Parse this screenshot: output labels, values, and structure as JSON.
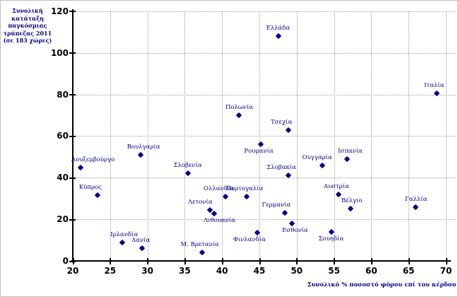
{
  "chart_data": {
    "type": "scatter",
    "title": "",
    "y_axis_label_lines": [
      "Συνολική",
      "κατάταξη",
      "παγκόσμιας",
      "τράπεζας 2011",
      "(σε 183 χώρες)"
    ],
    "x_axis_label": "Συνολικό % ποσοστό φόρου επί του κέρδου",
    "xlim": [
      20,
      70
    ],
    "ylim": [
      0,
      120
    ],
    "x_ticks": [
      20,
      25,
      30,
      35,
      40,
      45,
      50,
      55,
      60,
      65,
      70
    ],
    "y_ticks": [
      0,
      20,
      40,
      60,
      80,
      100,
      120
    ],
    "grid": "dotted",
    "legend": "none",
    "marker_color": "#00008B",
    "label_color": "#00008B",
    "grid_color": "#9a9a9a",
    "axis_color": "#000000",
    "points": [
      {
        "name": "Λουξεμβούργο",
        "x": 21.0,
        "y": 45,
        "label_side": "above",
        "dx": 18
      },
      {
        "name": "Κύπρος",
        "x": 23.3,
        "y": 31.5,
        "label_side": "above",
        "dx": -10
      },
      {
        "name": "Ιρλανδία",
        "x": 26.6,
        "y": 9,
        "label_side": "above",
        "dx": 3
      },
      {
        "name": "Δανία",
        "x": 29.3,
        "y": 6,
        "label_side": "above",
        "dx": -2
      },
      {
        "name": "Βουλγαρία",
        "x": 29.1,
        "y": 51,
        "label_side": "above",
        "dx": 4
      },
      {
        "name": "Σλοβενία",
        "x": 35.4,
        "y": 42,
        "label_side": "above",
        "dx": 0
      },
      {
        "name": "Μ. Βρετανία",
        "x": 37.3,
        "y": 4,
        "label_side": "above",
        "dx": -3
      },
      {
        "name": "Λετονία",
        "x": 38.4,
        "y": 24.5,
        "label_side": "above",
        "dx": -14
      },
      {
        "name": "Λιθουανία",
        "x": 38.9,
        "y": 22.8,
        "label_side": "below",
        "dx": 8
      },
      {
        "name": "Ολλανδία",
        "x": 40.5,
        "y": 31,
        "label_side": "above",
        "dx": -10
      },
      {
        "name": "Πολωνία",
        "x": 42.3,
        "y": 70,
        "label_side": "above",
        "dx": 0
      },
      {
        "name": "Πορτογαλία",
        "x": 43.3,
        "y": 31,
        "label_side": "above",
        "dx": -3
      },
      {
        "name": "Φινλανδία",
        "x": 44.7,
        "y": 13.5,
        "label_side": "below",
        "dx": -11
      },
      {
        "name": "Ρουμανία",
        "x": 45.2,
        "y": 56,
        "label_side": "below",
        "dx": -3
      },
      {
        "name": "Ελλάδα",
        "x": 47.6,
        "y": 108,
        "label_side": "above",
        "dx": -1
      },
      {
        "name": "Γερμανία",
        "x": 48.4,
        "y": 23,
        "label_side": "above",
        "dx": -12
      },
      {
        "name": "Σλοβακία",
        "x": 48.9,
        "y": 41,
        "label_side": "above",
        "dx": -10
      },
      {
        "name": "Τσεχία",
        "x": 48.9,
        "y": 63,
        "label_side": "above",
        "dx": -10
      },
      {
        "name": "Εσθονία",
        "x": 49.4,
        "y": 18,
        "label_side": "below",
        "dx": 4
      },
      {
        "name": "Ουγγαρία",
        "x": 53.4,
        "y": 46,
        "label_side": "above",
        "dx": -7
      },
      {
        "name": "Σουηδία",
        "x": 54.7,
        "y": 14,
        "label_side": "below",
        "dx": -1
      },
      {
        "name": "Αυστρία",
        "x": 55.6,
        "y": 32,
        "label_side": "above",
        "dx": -3
      },
      {
        "name": "Ισπανία",
        "x": 56.7,
        "y": 49,
        "label_side": "above",
        "dx": 5
      },
      {
        "name": "Βέλγιο",
        "x": 57.2,
        "y": 25,
        "label_side": "above",
        "dx": 2
      },
      {
        "name": "Γαλλία",
        "x": 65.9,
        "y": 26,
        "label_side": "above",
        "dx": 1
      },
      {
        "name": "Ιταλία",
        "x": 68.8,
        "y": 80.5,
        "label_side": "above",
        "dx": -4
      }
    ]
  }
}
